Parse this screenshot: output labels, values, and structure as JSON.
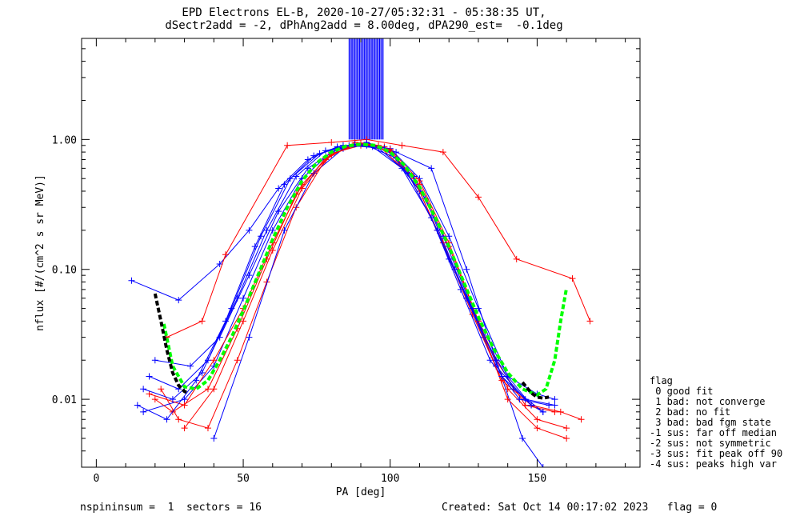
{
  "chart_data": {
    "type": "line",
    "title": "EPD Electrons EL-B, 2020-10-27/05:32:31 - 05:38:35 UT,",
    "subtitle": "dSectr2add = -2, dPhAng2add = 8.00deg, dPA290_est=  -0.1deg",
    "xlabel": "PA [deg]",
    "ylabel": "nflux [#/(cm^2 s sr MeV)]",
    "xlim": [
      -5,
      185
    ],
    "ylim": [
      0.003,
      6.0
    ],
    "yscale": "log",
    "xticks": [
      0,
      50,
      100,
      150
    ],
    "xtick_labels": [
      "0",
      "50",
      "100",
      "150"
    ],
    "yticks": [
      0.01,
      0.1,
      1.0
    ],
    "ytick_labels": [
      "0.01",
      "0.10",
      "1.00"
    ],
    "grid": false,
    "legend": {
      "title": "flag",
      "placement": "right",
      "entries": [
        " 0 good fit",
        " 1 bad: not converge",
        " 2 bad: no fit",
        " 3 bad: bad fgm state",
        "-1 sus: far off median",
        "-2 sus: not symmetric",
        "-3 sus: fit peak off 90",
        "-4 sus: peaks high var"
      ]
    },
    "series": [
      {
        "color": "#0000ff",
        "x": [
          12,
          28,
          42,
          52,
          62,
          72,
          82,
          92,
          100,
          110,
          120,
          130,
          140,
          148,
          152
        ],
        "y": [
          0.082,
          0.058,
          0.11,
          0.2,
          0.42,
          0.7,
          0.88,
          0.93,
          0.8,
          0.4,
          0.12,
          0.04,
          0.015,
          0.009,
          0.008
        ]
      },
      {
        "color": "#ff0000",
        "x": [
          22,
          28,
          38,
          48,
          58,
          68,
          78,
          88,
          96,
          106,
          116,
          126,
          136,
          146,
          156
        ],
        "y": [
          0.012,
          0.007,
          0.006,
          0.02,
          0.08,
          0.3,
          0.7,
          0.95,
          0.9,
          0.55,
          0.2,
          0.06,
          0.02,
          0.009,
          0.008
        ]
      },
      {
        "color": "#ff0000",
        "x": [
          24,
          36,
          44,
          65,
          80,
          92,
          104,
          118,
          130,
          143,
          162,
          168
        ],
        "y": [
          0.03,
          0.04,
          0.13,
          0.9,
          0.95,
          1.0,
          0.9,
          0.8,
          0.36,
          0.12,
          0.085,
          0.04
        ]
      },
      {
        "color": "#0000ff",
        "x": [
          16,
          30,
          40,
          50,
          60,
          70,
          80,
          90,
          100,
          110,
          120,
          130,
          140,
          150,
          156
        ],
        "y": [
          0.008,
          0.01,
          0.018,
          0.06,
          0.2,
          0.5,
          0.8,
          0.92,
          0.85,
          0.5,
          0.18,
          0.05,
          0.015,
          0.011,
          0.01
        ]
      },
      {
        "color": "#ff0000",
        "x": [
          18,
          30,
          40,
          50,
          60,
          70,
          80,
          90,
          100,
          110,
          120,
          130,
          140,
          150,
          160
        ],
        "y": [
          0.011,
          0.009,
          0.02,
          0.05,
          0.16,
          0.45,
          0.78,
          0.9,
          0.82,
          0.45,
          0.15,
          0.04,
          0.012,
          0.007,
          0.006
        ]
      },
      {
        "color": "#0000ff",
        "x": [
          20,
          32,
          42,
          52,
          62,
          72,
          82,
          92,
          102,
          112,
          122,
          132,
          142,
          152
        ],
        "y": [
          0.02,
          0.018,
          0.03,
          0.09,
          0.28,
          0.6,
          0.85,
          0.9,
          0.72,
          0.35,
          0.1,
          0.03,
          0.012,
          0.008
        ]
      },
      {
        "color": "#0000ff",
        "x": [
          40,
          52,
          64,
          74,
          84,
          92,
          102,
          114,
          126,
          136,
          145,
          152
        ],
        "y": [
          0.005,
          0.03,
          0.2,
          0.55,
          0.85,
          0.95,
          0.8,
          0.6,
          0.1,
          0.02,
          0.005,
          0.003
        ]
      },
      {
        "color": "#ff0000",
        "x": [
          20,
          26,
          38,
          48,
          58,
          68,
          78,
          88,
          98,
          108,
          118,
          128,
          138,
          148,
          158,
          165
        ],
        "y": [
          0.01,
          0.008,
          0.012,
          0.035,
          0.12,
          0.38,
          0.72,
          0.92,
          0.88,
          0.5,
          0.16,
          0.045,
          0.014,
          0.009,
          0.008,
          0.007
        ]
      },
      {
        "color": "#0000ff",
        "x": [
          14,
          24,
          34,
          44,
          54,
          64,
          74,
          84,
          94,
          104,
          114,
          124,
          134,
          144,
          154
        ],
        "y": [
          0.009,
          0.007,
          0.014,
          0.04,
          0.15,
          0.45,
          0.75,
          0.9,
          0.88,
          0.6,
          0.25,
          0.07,
          0.02,
          0.01,
          0.009
        ]
      },
      {
        "color": "#0000ff",
        "x": [
          16,
          26,
          36,
          46,
          56,
          66,
          76,
          86,
          96,
          106,
          116,
          126,
          136,
          146,
          156
        ],
        "y": [
          0.012,
          0.01,
          0.016,
          0.05,
          0.18,
          0.5,
          0.78,
          0.9,
          0.86,
          0.55,
          0.2,
          0.06,
          0.018,
          0.01,
          0.009
        ]
      },
      {
        "color": "#ff0000",
        "x": [
          30,
          40,
          50,
          60,
          70,
          80,
          90,
          100,
          110,
          120,
          130,
          140,
          150,
          160
        ],
        "y": [
          0.006,
          0.012,
          0.04,
          0.14,
          0.42,
          0.76,
          0.94,
          0.84,
          0.48,
          0.16,
          0.04,
          0.01,
          0.006,
          0.005
        ]
      },
      {
        "color": "#0000ff",
        "x": [
          18,
          28,
          38,
          48,
          58,
          68,
          78,
          88,
          98,
          108,
          118,
          128,
          138,
          148
        ],
        "y": [
          0.015,
          0.012,
          0.02,
          0.06,
          0.2,
          0.52,
          0.82,
          0.92,
          0.86,
          0.52,
          0.18,
          0.05,
          0.015,
          0.009
        ]
      }
    ],
    "vertical_spike": {
      "color": "#0000ff",
      "x_range": [
        86,
        98
      ],
      "y_top": 6.0,
      "y_base": 1.0
    },
    "fit_curves": [
      {
        "color": "#00ff00",
        "style": "dashed",
        "x": [
          23,
          26,
          30,
          34,
          38,
          42,
          46,
          50,
          55,
          60,
          65,
          70,
          75,
          80,
          85,
          90,
          95,
          100,
          105,
          110,
          115,
          120,
          125,
          130,
          135,
          140,
          145,
          150,
          153,
          156,
          158,
          160
        ],
        "y": [
          0.038,
          0.018,
          0.0125,
          0.012,
          0.014,
          0.02,
          0.03,
          0.048,
          0.09,
          0.17,
          0.3,
          0.48,
          0.66,
          0.8,
          0.89,
          0.92,
          0.9,
          0.8,
          0.63,
          0.43,
          0.26,
          0.15,
          0.08,
          0.043,
          0.025,
          0.016,
          0.012,
          0.0108,
          0.012,
          0.02,
          0.04,
          0.072
        ]
      },
      {
        "color": "#000000",
        "style": "dashed",
        "x": [
          20,
          22,
          24,
          26,
          28,
          30,
          31
        ],
        "y": [
          0.065,
          0.04,
          0.024,
          0.016,
          0.0128,
          0.0115,
          0.0112
        ]
      },
      {
        "color": "#000000",
        "style": "dashed",
        "x": [
          145,
          148,
          150,
          152,
          154
        ],
        "y": [
          0.0135,
          0.0112,
          0.0104,
          0.0102,
          0.0104
        ]
      }
    ]
  },
  "footer": {
    "left": "nspininsum =  1  sectors = 16",
    "right": "Created: Sat Oct 14 00:17:02 2023   flag = 0"
  }
}
